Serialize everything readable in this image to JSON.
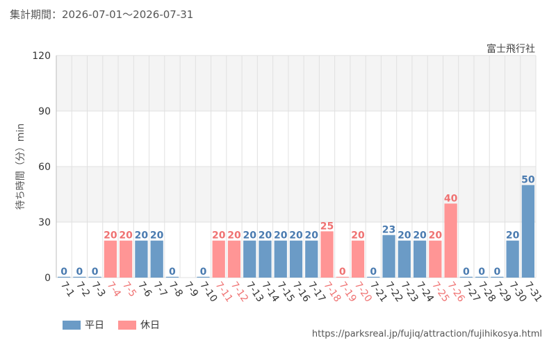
{
  "header": {
    "period_label": "集計期間：2026-07-01〜2026-07-31",
    "attraction": "富士飛行社"
  },
  "legend": {
    "weekday": "平日",
    "holiday": "休日"
  },
  "source_url": "https://parksreal.jp/fujiq/attraction/fujihikosya.html",
  "colors": {
    "weekday": "#6b9bc6",
    "holiday": "#ff9595",
    "weekday_text": "#4a7bb0",
    "holiday_text": "#ef7272",
    "band": "#f4f4f4",
    "grid": "#e0e0e0",
    "axis_text": "#333333"
  },
  "chart_data": {
    "type": "bar",
    "categories": [
      "7-1",
      "7-2",
      "7-3",
      "7-4",
      "7-5",
      "7-6",
      "7-7",
      "7-8",
      "7-9",
      "7-10",
      "7-11",
      "7-12",
      "7-13",
      "7-14",
      "7-15",
      "7-16",
      "7-17",
      "7-18",
      "7-19",
      "7-20",
      "7-21",
      "7-22",
      "7-23",
      "7-24",
      "7-25",
      "7-26",
      "7-27",
      "7-28",
      "7-29",
      "7-30",
      "7-31"
    ],
    "values": [
      0,
      0,
      0,
      20,
      20,
      20,
      20,
      0,
      null,
      0,
      20,
      20,
      20,
      20,
      20,
      20,
      20,
      25,
      0,
      20,
      0,
      23,
      20,
      20,
      20,
      40,
      0,
      0,
      0,
      20,
      50
    ],
    "day_type": [
      "weekday",
      "weekday",
      "weekday",
      "holiday",
      "holiday",
      "weekday",
      "weekday",
      "weekday",
      "weekday",
      "weekday",
      "holiday",
      "holiday",
      "weekday",
      "weekday",
      "weekday",
      "weekday",
      "weekday",
      "holiday",
      "holiday",
      "holiday",
      "weekday",
      "weekday",
      "weekday",
      "weekday",
      "holiday",
      "holiday",
      "weekday",
      "weekday",
      "weekday",
      "weekday",
      "weekday"
    ],
    "ylabel": "待ち時間（分）min",
    "ylim": [
      0,
      120
    ],
    "yticks": [
      0,
      30,
      60,
      90,
      120
    ],
    "grid": true
  }
}
